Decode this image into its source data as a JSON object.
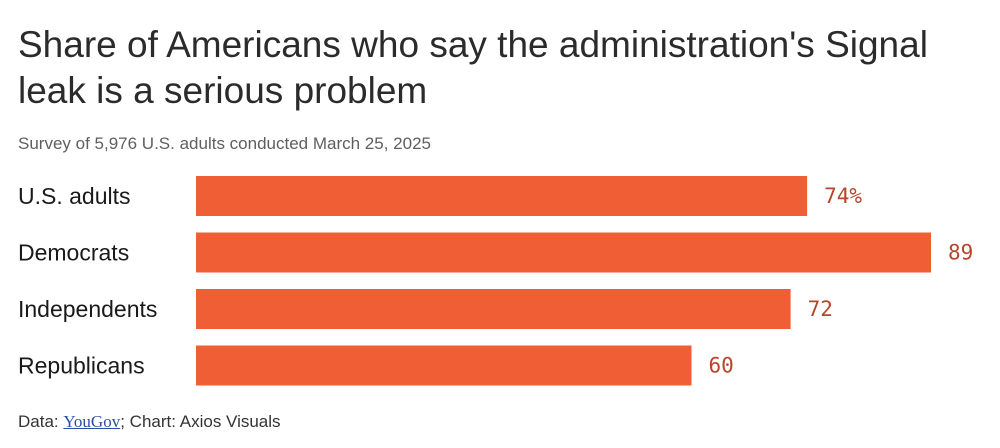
{
  "chart_data": {
    "type": "bar",
    "orientation": "horizontal",
    "title": "Share of Americans who say the administration's Signal leak is a serious problem",
    "subtitle": "Survey of 5,976 U.S. adults conducted March 25, 2025",
    "categories": [
      "U.S. adults",
      "Democrats",
      "Independents",
      "Republicans"
    ],
    "values": [
      74,
      89,
      72,
      60
    ],
    "value_labels": [
      "74%",
      "89",
      "72",
      "60"
    ],
    "xlim": [
      0,
      89
    ],
    "unit": "%",
    "bar_color": "#ef5e34",
    "label_color": "#b5462a"
  },
  "footer": {
    "data_prefix": "Data: ",
    "source_link": "YouGov",
    "chart_credit": "; Chart: Axios Visuals"
  }
}
